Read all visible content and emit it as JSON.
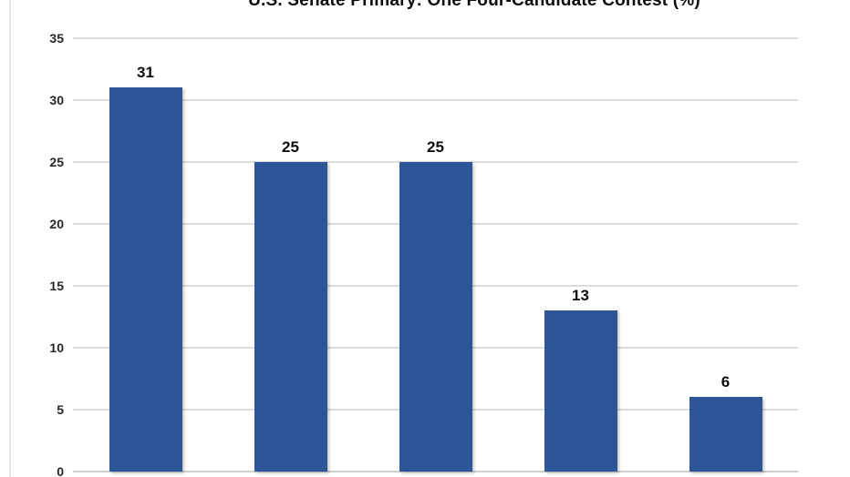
{
  "page": {
    "background_color": "#ffffff",
    "left_edge_line_color": "#e4e4e4"
  },
  "chart_data": {
    "type": "bar",
    "title": "U.S. Senate Primary: One Four-Candidate Contest (%)",
    "title_note": "title partially clipped at top edge of screenshot",
    "values": [
      31,
      25,
      25,
      13,
      6
    ],
    "data_labels": [
      "31",
      "25",
      "25",
      "13",
      "6"
    ],
    "y_ticks": [
      "0",
      "5",
      "10",
      "15",
      "20",
      "25",
      "30",
      "35"
    ],
    "ylim": [
      0,
      35
    ],
    "xlabel": "",
    "ylabel": "",
    "categories_visible": false,
    "grid": true,
    "legend": "none",
    "bar_color": "#2E5596",
    "gridline_color": "#dcdcdc",
    "axis_tick_label_color": "#262626",
    "data_label_color": "#0d0d0d",
    "title_color": "#0d0d0d"
  }
}
